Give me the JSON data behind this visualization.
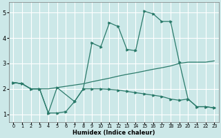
{
  "xlabel": "Humidex (Indice chaleur)",
  "bg_color": "#cce8e8",
  "grid_color": "#ffffff",
  "line_color": "#2a7a6a",
  "xlim": [
    -0.5,
    23.5
  ],
  "ylim": [
    0.7,
    5.4
  ],
  "xticks": [
    0,
    1,
    2,
    3,
    4,
    5,
    6,
    7,
    8,
    9,
    10,
    11,
    12,
    13,
    14,
    15,
    16,
    17,
    18,
    19,
    20,
    21,
    22,
    23
  ],
  "yticks": [
    1,
    2,
    3,
    4,
    5
  ],
  "line_jagged_x": [
    0,
    1,
    2,
    3,
    4,
    5,
    7,
    8,
    9,
    10,
    11,
    12,
    13,
    14,
    15,
    16,
    17,
    18,
    19,
    20,
    21,
    22,
    23
  ],
  "line_jagged_y": [
    2.25,
    2.2,
    2.0,
    2.0,
    1.05,
    2.05,
    1.5,
    2.0,
    3.8,
    3.65,
    4.6,
    4.45,
    3.55,
    3.5,
    5.05,
    4.95,
    4.65,
    4.65,
    3.05,
    1.6,
    1.3,
    1.3,
    1.25
  ],
  "line_rising_x": [
    0,
    1,
    2,
    3,
    4,
    5,
    6,
    7,
    8,
    9,
    10,
    11,
    12,
    13,
    14,
    15,
    16,
    17,
    18,
    19,
    20,
    21,
    22,
    23
  ],
  "line_rising_y": [
    2.25,
    2.2,
    2.0,
    2.0,
    2.0,
    2.05,
    2.1,
    2.15,
    2.2,
    2.28,
    2.35,
    2.42,
    2.5,
    2.57,
    2.63,
    2.7,
    2.77,
    2.83,
    2.9,
    3.0,
    3.05,
    3.05,
    3.05,
    3.1
  ],
  "line_falling_x": [
    0,
    1,
    2,
    3,
    4,
    5,
    6,
    7,
    8,
    9,
    10,
    11,
    12,
    13,
    14,
    15,
    16,
    17,
    18,
    19,
    20,
    21,
    22,
    23
  ],
  "line_falling_y": [
    2.25,
    2.2,
    2.0,
    2.0,
    1.05,
    1.05,
    1.1,
    1.5,
    2.0,
    2.0,
    2.0,
    1.98,
    1.95,
    1.9,
    1.85,
    1.8,
    1.75,
    1.7,
    1.6,
    1.55,
    1.6,
    1.3,
    1.3,
    1.25
  ]
}
